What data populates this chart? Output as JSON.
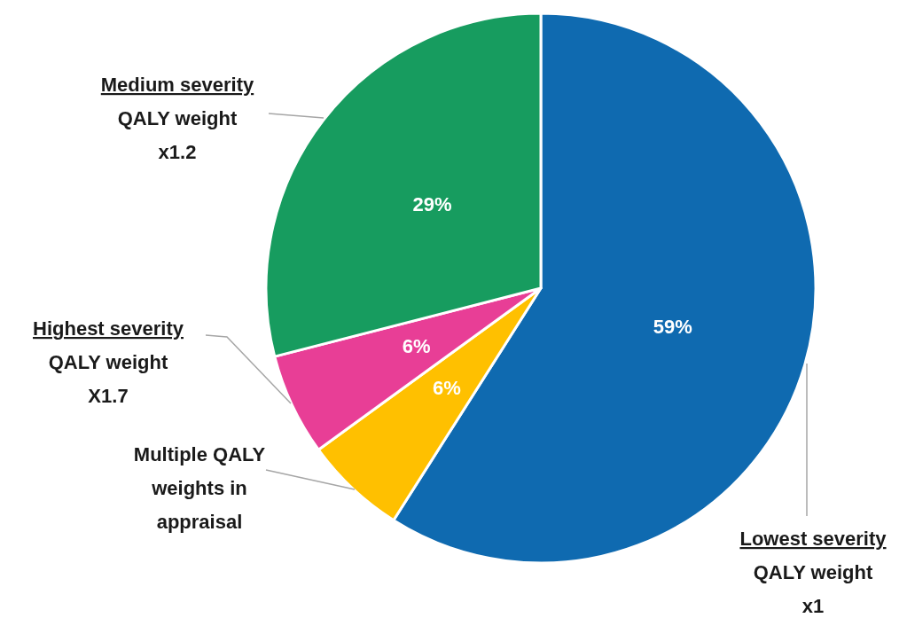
{
  "chart_data": {
    "type": "pie",
    "categories": [
      "Lowest severity\nQALY weight\nx1",
      "Multiple QALY weights in appraisal",
      "Highest severity\nQALY weight\nX1.7",
      "Medium severity\nQALY weight\nx1.2"
    ],
    "values": [
      59,
      6,
      6,
      29
    ],
    "colors": [
      "#0f6ab0",
      "#ffc000",
      "#e83e96",
      "#179c5f"
    ],
    "value_labels": [
      "59%",
      "6%",
      "6%",
      "29%"
    ]
  }
}
